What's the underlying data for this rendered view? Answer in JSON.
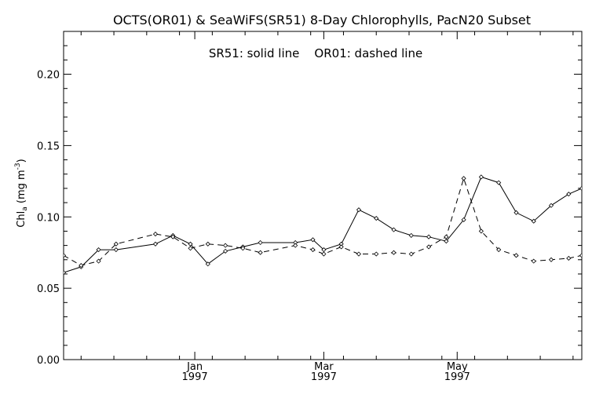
{
  "chart_data": {
    "type": "line",
    "title": "OCTS(OR01) & SeaWiFS(SR51) 8-Day Chlorophylls, PacN20 Subset",
    "annotation": "SR51: solid line    OR01: dashed line",
    "ylabel": {
      "main": "Chl",
      "subscript": "a",
      "units_open": " (mg m",
      "superscript": "-3",
      "units_close": ")"
    },
    "ylim": [
      0.0,
      0.23
    ],
    "yticks": [
      "0.00",
      "0.05",
      "0.10",
      "0.15",
      "0.20"
    ],
    "xlim": [
      "1996-11-02",
      "1997-06-27"
    ],
    "xticks": [
      {
        "month": "Jan",
        "year": "1997",
        "date": "1997-01-01"
      },
      {
        "month": "Mar",
        "year": "1997",
        "date": "1997-03-01"
      },
      {
        "month": "May",
        "year": "1997",
        "date": "1997-05-01"
      }
    ],
    "grid": false,
    "series": [
      {
        "name": "SR51",
        "style": "solid",
        "color": "#000000",
        "x": [
          "1996-11-02",
          "1996-11-10",
          "1996-11-18",
          "1996-11-26",
          "1996-12-14",
          "1996-12-22",
          "1996-12-30",
          "1997-01-07",
          "1997-01-15",
          "1997-01-23",
          "1997-01-31",
          "1997-02-16",
          "1997-02-24",
          "1997-03-01",
          "1997-03-09",
          "1997-03-17",
          "1997-03-25",
          "1997-04-02",
          "1997-04-10",
          "1997-04-18",
          "1997-04-26",
          "1997-05-04",
          "1997-05-12",
          "1997-05-20",
          "1997-05-28",
          "1997-06-05",
          "1997-06-13",
          "1997-06-21",
          "1997-06-27"
        ],
        "y": [
          0.061,
          0.065,
          0.077,
          0.077,
          0.081,
          0.087,
          0.081,
          0.067,
          0.076,
          0.079,
          0.082,
          0.082,
          0.084,
          0.077,
          0.081,
          0.105,
          0.099,
          0.091,
          0.087,
          0.086,
          0.083,
          0.098,
          0.128,
          0.124,
          0.103,
          0.097,
          0.108,
          0.116,
          0.12
        ]
      },
      {
        "name": "OR01",
        "style": "dashed",
        "color": "#000000",
        "x": [
          "1996-11-02",
          "1996-11-10",
          "1996-11-18",
          "1996-11-26",
          "1996-12-14",
          "1996-12-22",
          "1996-12-30",
          "1997-01-07",
          "1997-01-15",
          "1997-01-23",
          "1997-01-31",
          "1997-02-16",
          "1997-02-24",
          "1997-03-01",
          "1997-03-09",
          "1997-03-17",
          "1997-03-25",
          "1997-04-02",
          "1997-04-10",
          "1997-04-18",
          "1997-04-26",
          "1997-05-04",
          "1997-05-12",
          "1997-05-20",
          "1997-05-28",
          "1997-06-05",
          "1997-06-13",
          "1997-06-21",
          "1997-06-27"
        ],
        "y": [
          0.073,
          0.066,
          0.069,
          0.081,
          0.088,
          0.086,
          0.078,
          0.081,
          0.08,
          0.078,
          0.075,
          0.08,
          0.077,
          0.074,
          0.079,
          0.074,
          0.074,
          0.075,
          0.074,
          0.079,
          0.086,
          0.127,
          0.09,
          0.077,
          0.073,
          0.069,
          0.07,
          0.071,
          0.073
        ]
      }
    ]
  }
}
